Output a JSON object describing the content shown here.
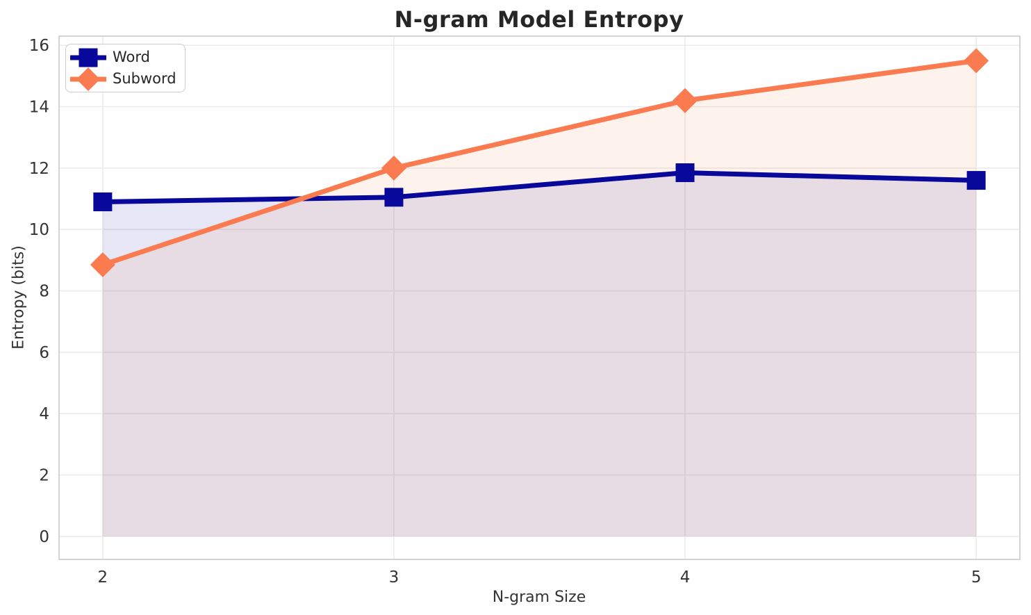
{
  "chart_data": {
    "type": "line",
    "title": "N-gram Model Entropy",
    "xlabel": "N-gram Size",
    "ylabel": "Entropy (bits)",
    "x": [
      2,
      3,
      4,
      5
    ],
    "series": [
      {
        "name": "Word",
        "values": [
          10.9,
          11.05,
          11.85,
          11.6
        ],
        "color": "#08089A",
        "marker": "square",
        "fill_to_zero": true
      },
      {
        "name": "Subword",
        "values": [
          8.85,
          12.0,
          14.2,
          15.5
        ],
        "color": "#FA7B50",
        "marker": "diamond",
        "fill_to_zero": true
      }
    ],
    "fill_alpha": 0.1,
    "line_width": 7,
    "xlim": [
      1.85,
      5.15
    ],
    "ylim": [
      -0.75,
      16.3
    ],
    "xticks": [
      2,
      3,
      4,
      5
    ],
    "yticks": [
      0,
      2,
      4,
      6,
      8,
      10,
      12,
      14,
      16
    ],
    "grid": true,
    "legend": {
      "position": "upper left",
      "labels": [
        "Word",
        "Subword"
      ]
    }
  },
  "style": {
    "background": "#FFFFFF",
    "grid_color": "#EBEBEB",
    "spine_color": "#D4D4D4",
    "tick_text_color": "#333333",
    "title_color": "#262626"
  }
}
